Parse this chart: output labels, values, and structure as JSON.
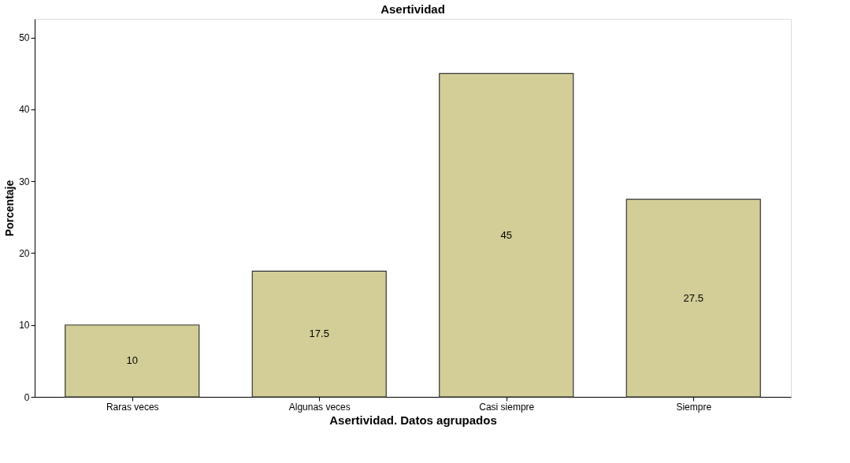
{
  "chart_data": {
    "type": "bar",
    "title": "Asertividad",
    "xlabel": "Asertividad. Datos agrupados",
    "ylabel": "Porcentaje",
    "categories": [
      "Raras veces",
      "Algunas veces",
      "Casi siempre",
      "Siempre"
    ],
    "values": [
      10,
      17.5,
      45,
      27.5
    ],
    "color": "#d3ce97",
    "ylim": [
      0,
      52.6
    ],
    "yticks": [
      0,
      10,
      20,
      30,
      40,
      50
    ],
    "grid": false,
    "data_labels": true
  }
}
